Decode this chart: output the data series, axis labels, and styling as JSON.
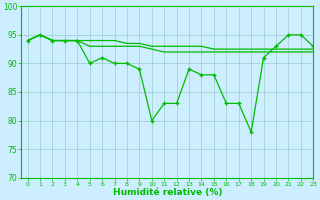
{
  "x": [
    0,
    1,
    2,
    3,
    4,
    5,
    6,
    7,
    8,
    9,
    10,
    11,
    12,
    13,
    14,
    15,
    16,
    17,
    18,
    19,
    20,
    21,
    22,
    23
  ],
  "y_main": [
    94,
    95,
    94,
    94,
    94,
    90,
    91,
    90,
    90,
    89,
    80,
    83,
    83,
    89,
    88,
    88,
    83,
    83,
    78,
    91,
    93,
    95,
    95,
    93
  ],
  "y_upper": [
    94,
    95,
    94,
    94,
    94,
    94,
    94,
    94,
    93.5,
    93.5,
    93,
    93,
    93,
    93,
    93,
    92.5,
    92.5,
    92.5,
    92.5,
    92.5,
    92.5,
    92.5,
    92.5,
    92.5
  ],
  "y_lower": [
    94,
    95,
    94,
    94,
    94,
    93,
    93,
    93,
    93,
    93,
    92.5,
    92,
    92,
    92,
    92,
    92,
    92,
    92,
    92,
    92,
    92,
    92,
    92,
    92
  ],
  "xlabel": "Humidité relative (%)",
  "ylim": [
    70,
    100
  ],
  "xlim": [
    -0.5,
    23
  ],
  "yticks": [
    70,
    75,
    80,
    85,
    90,
    95,
    100
  ],
  "xticks": [
    0,
    1,
    2,
    3,
    4,
    5,
    6,
    7,
    8,
    9,
    10,
    11,
    12,
    13,
    14,
    15,
    16,
    17,
    18,
    19,
    20,
    21,
    22,
    23
  ],
  "line_color": "#00bb00",
  "bg_color": "#cceeff",
  "grid_color": "#99cccc"
}
